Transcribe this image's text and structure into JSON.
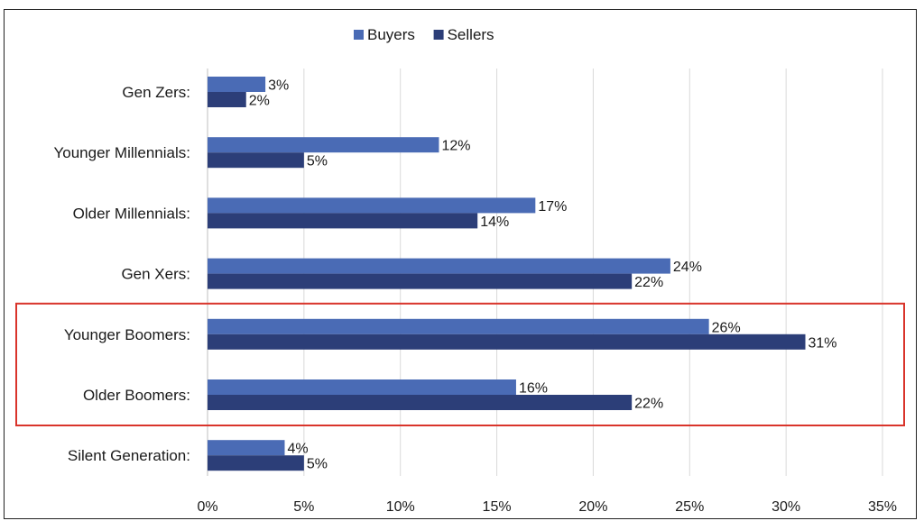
{
  "chart_data": {
    "type": "bar",
    "orientation": "horizontal",
    "categories": [
      "Gen Zers:",
      "Younger Millennials:",
      "Older Millennials:",
      "Gen Xers:",
      "Younger Boomers:",
      "Older Boomers:",
      "Silent Generation:"
    ],
    "series": [
      {
        "name": "Buyers",
        "color": "#4a6bb5",
        "values": [
          3,
          12,
          17,
          24,
          26,
          16,
          4
        ]
      },
      {
        "name": "Sellers",
        "color": "#2c3e78",
        "values": [
          2,
          5,
          14,
          22,
          31,
          22,
          5
        ]
      }
    ],
    "data_label_suffix": "%",
    "xlim": [
      0,
      35
    ],
    "xticks": [
      0,
      5,
      10,
      15,
      20,
      25,
      30,
      35
    ],
    "xtick_labels": [
      "0%",
      "5%",
      "10%",
      "15%",
      "20%",
      "25%",
      "30%",
      "35%"
    ],
    "grid": "vertical",
    "legend_position": "top",
    "highlight": {
      "categories": [
        "Younger Boomers:",
        "Older Boomers:"
      ],
      "color": "#d9342b"
    }
  }
}
